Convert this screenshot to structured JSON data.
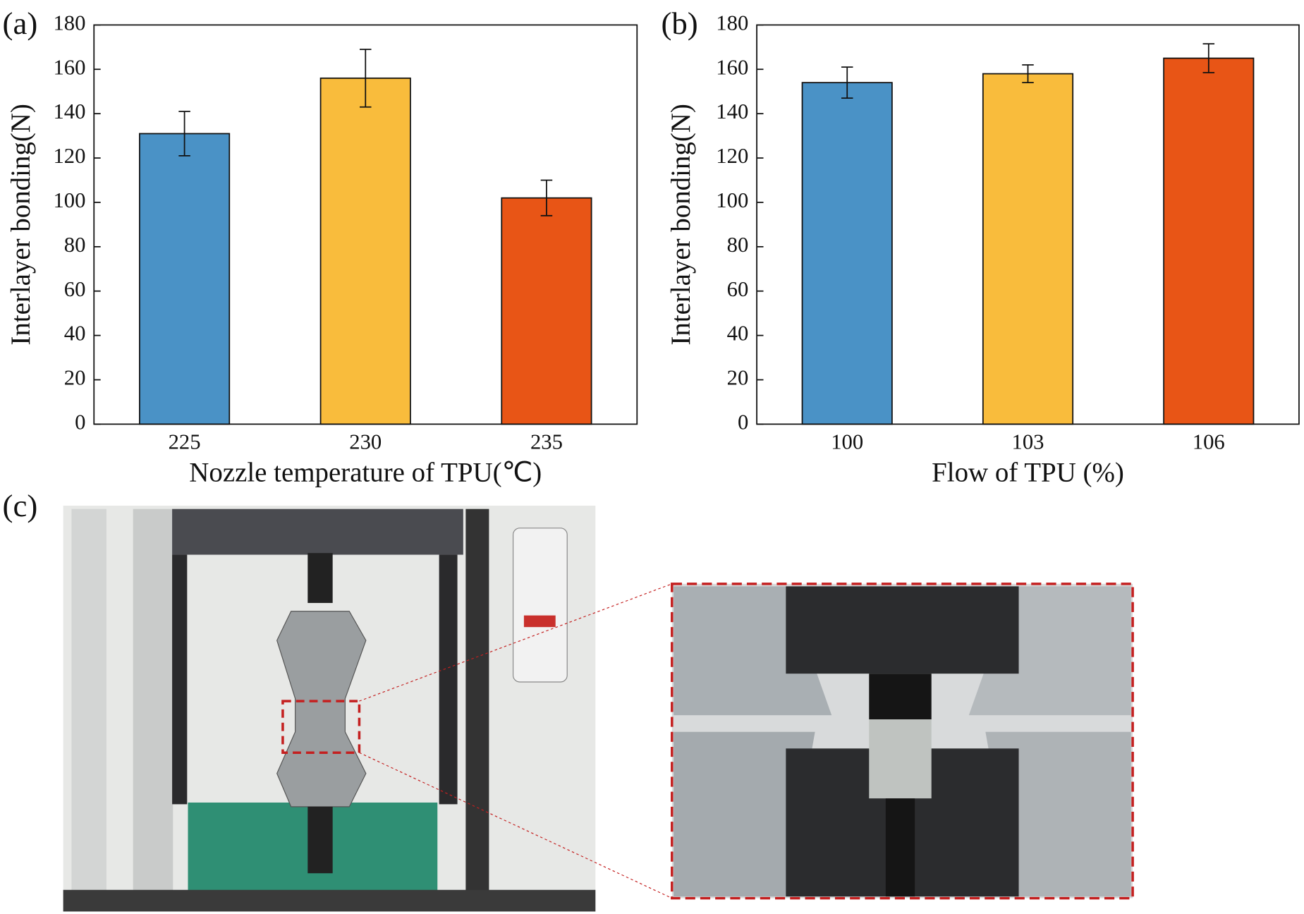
{
  "chart_data": [
    {
      "type": "bar",
      "panel_label": "(a)",
      "ylabel": "Interlayer bonding(N)",
      "xlabel": "Nozzle temperature of TPU(℃)",
      "categories": [
        "225",
        "230",
        "235"
      ],
      "values": [
        131,
        156,
        102
      ],
      "errors": [
        10,
        13,
        8
      ],
      "colors": [
        "#4a92c6",
        "#f9bc3c",
        "#e85516"
      ],
      "ylim": [
        0,
        180
      ],
      "yticks": [
        0,
        20,
        40,
        60,
        80,
        100,
        120,
        140,
        160,
        180
      ]
    },
    {
      "type": "bar",
      "panel_label": "(b)",
      "ylabel": "Interlayer bonding(N)",
      "xlabel": "Flow of TPU (%)",
      "categories": [
        "100",
        "103",
        "106"
      ],
      "values": [
        154,
        158,
        165
      ],
      "errors": [
        7,
        4,
        6.5
      ],
      "colors": [
        "#4a92c6",
        "#f9bc3c",
        "#e85516"
      ],
      "ylim": [
        0,
        180
      ],
      "yticks": [
        0,
        20,
        40,
        60,
        80,
        100,
        120,
        140,
        160,
        180
      ]
    }
  ],
  "photo_panel": {
    "label": "(c)"
  }
}
